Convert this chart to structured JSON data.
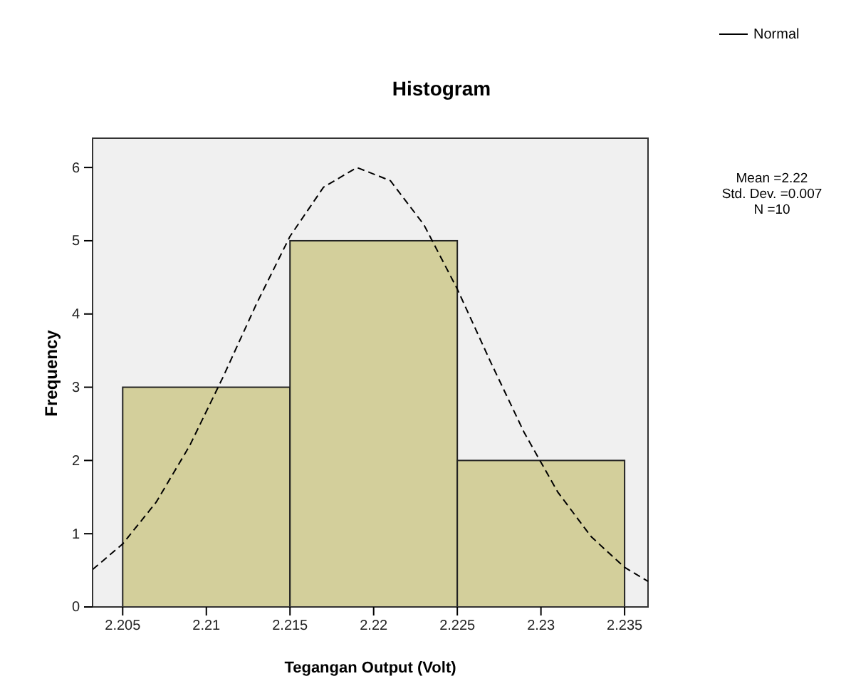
{
  "chart_data": {
    "type": "histogram",
    "title": "Histogram",
    "xlabel": "Tegangan Output (Volt)",
    "ylabel": "Frequency",
    "annotations": [
      "Mean =2.22",
      "Std. Dev. =0.007",
      "N =10"
    ],
    "xlim": [
      2.2032,
      2.2364
    ],
    "xticks": [
      2.205,
      2.21,
      2.215,
      2.22,
      2.225,
      2.23,
      2.235
    ],
    "ylim": [
      0,
      6.4
    ],
    "yticks": [
      0,
      1,
      2,
      3,
      4,
      5,
      6
    ],
    "grid": false,
    "legend": "top right",
    "series": [
      {
        "color": "#d3cf9b",
        "bins": [
          2.205,
          2.215,
          2.225,
          2.235
        ],
        "values": [
          3,
          5,
          2
        ]
      },
      {
        "type": "line",
        "name": "Normal",
        "color": "#000000",
        "line_style": "dashed",
        "x": [
          2.2032,
          2.205,
          2.207,
          2.209,
          2.211,
          2.213,
          2.215,
          2.217,
          2.219,
          2.221,
          2.223,
          2.225,
          2.227,
          2.229,
          2.231,
          2.233,
          2.235,
          2.2364
        ],
        "values": [
          0.51,
          0.86,
          1.43,
          2.2,
          3.14,
          4.14,
          5.06,
          5.73,
          6,
          5.82,
          5.22,
          4.34,
          3.34,
          2.38,
          1.57,
          0.96,
          0.54,
          0.35
        ]
      }
    ]
  }
}
